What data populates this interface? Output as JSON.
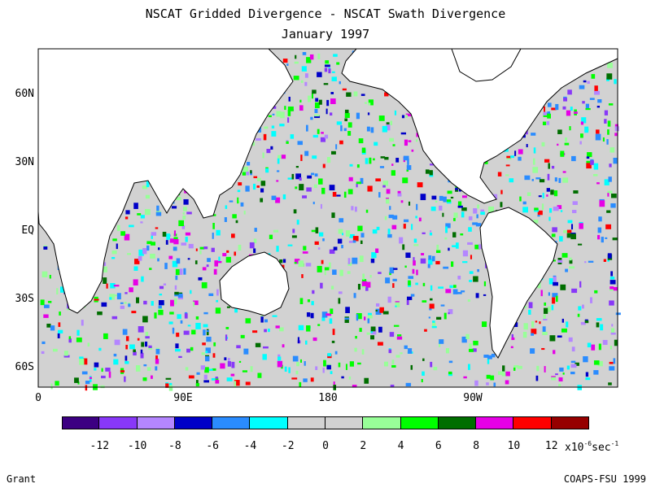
{
  "title_line1": "NSCAT Gridded Divergence - NSCAT Swath Divergence",
  "title_line2": "January 1997",
  "lat_labels": [
    "60N",
    "30N",
    "EQ",
    "30S",
    "60S"
  ],
  "lon_labels": [
    "0",
    "90E",
    "180",
    "90W"
  ],
  "colorbar": {
    "ticks": [
      "-12",
      "-10",
      "-8",
      "-6",
      "-4",
      "-2",
      "0",
      "2",
      "4",
      "6",
      "8",
      "10",
      "12"
    ],
    "colors": [
      "#3c0082",
      "#8838f8",
      "#b486ff",
      "#0000c8",
      "#2a8cff",
      "#00ffff",
      "#d2d2d2",
      "#d2d2d2",
      "#98ff98",
      "#00ff00",
      "#006e00",
      "#e600e6",
      "#ff0000",
      "#960000"
    ],
    "units_base": "x10",
    "units_exp": "-6",
    "units_suffix": "sec",
    "units_exp2": "-1"
  },
  "credit_left": "Grant",
  "credit_right": "COAPS-FSU 1999",
  "map_colors": {
    "ocean": "#d2d2d2",
    "land": "#ffffff",
    "coast": "#000000"
  }
}
